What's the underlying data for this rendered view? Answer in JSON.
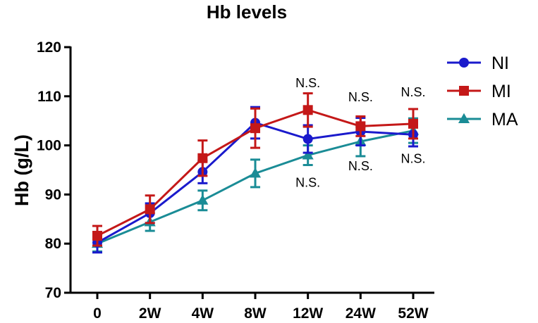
{
  "chart_data": {
    "type": "line",
    "title": "Hb levels",
    "xlabel": "",
    "ylabel": "Hb (g/L)",
    "categories": [
      "0",
      "2W",
      "4W",
      "8W",
      "12W",
      "24W",
      "52W"
    ],
    "ylim": [
      70,
      120
    ],
    "yticks": [
      70,
      80,
      90,
      100,
      110,
      120
    ],
    "grid": false,
    "legend_position": "top-right",
    "series": [
      {
        "name": "NI",
        "marker": "circle",
        "color": "#1a1acc",
        "values": [
          80.2,
          86.2,
          94.6,
          104.6,
          101.3,
          102.8,
          102.2
        ],
        "errors": [
          2.0,
          2.0,
          2.3,
          3.2,
          2.8,
          2.8,
          2.4
        ]
      },
      {
        "name": "MI",
        "marker": "square",
        "color": "#c41818",
        "values": [
          81.6,
          87.0,
          97.4,
          103.5,
          107.2,
          103.9,
          104.4
        ],
        "errors": [
          2.0,
          2.8,
          3.6,
          4.0,
          3.4,
          2.0,
          3.0
        ]
      },
      {
        "name": "MA",
        "marker": "triangle",
        "color": "#1a8c96",
        "values": [
          80.0,
          84.4,
          88.8,
          94.3,
          98.0,
          100.8,
          103.0
        ],
        "errors": [
          1.6,
          1.8,
          2.0,
          2.8,
          2.0,
          3.0,
          2.5
        ]
      }
    ],
    "annotations": [
      {
        "text": "N.S.",
        "x": "12W",
        "y": 112.7
      },
      {
        "text": "N.S.",
        "x": "24W",
        "y": 109.8
      },
      {
        "text": "N.S.",
        "x": "52W",
        "y": 110.8
      },
      {
        "text": "N.S.",
        "x": "12W",
        "y": 92.4
      },
      {
        "text": "N.S.",
        "x": "24W",
        "y": 95.8
      },
      {
        "text": "N.S.",
        "x": "52W",
        "y": 97.3
      }
    ]
  }
}
